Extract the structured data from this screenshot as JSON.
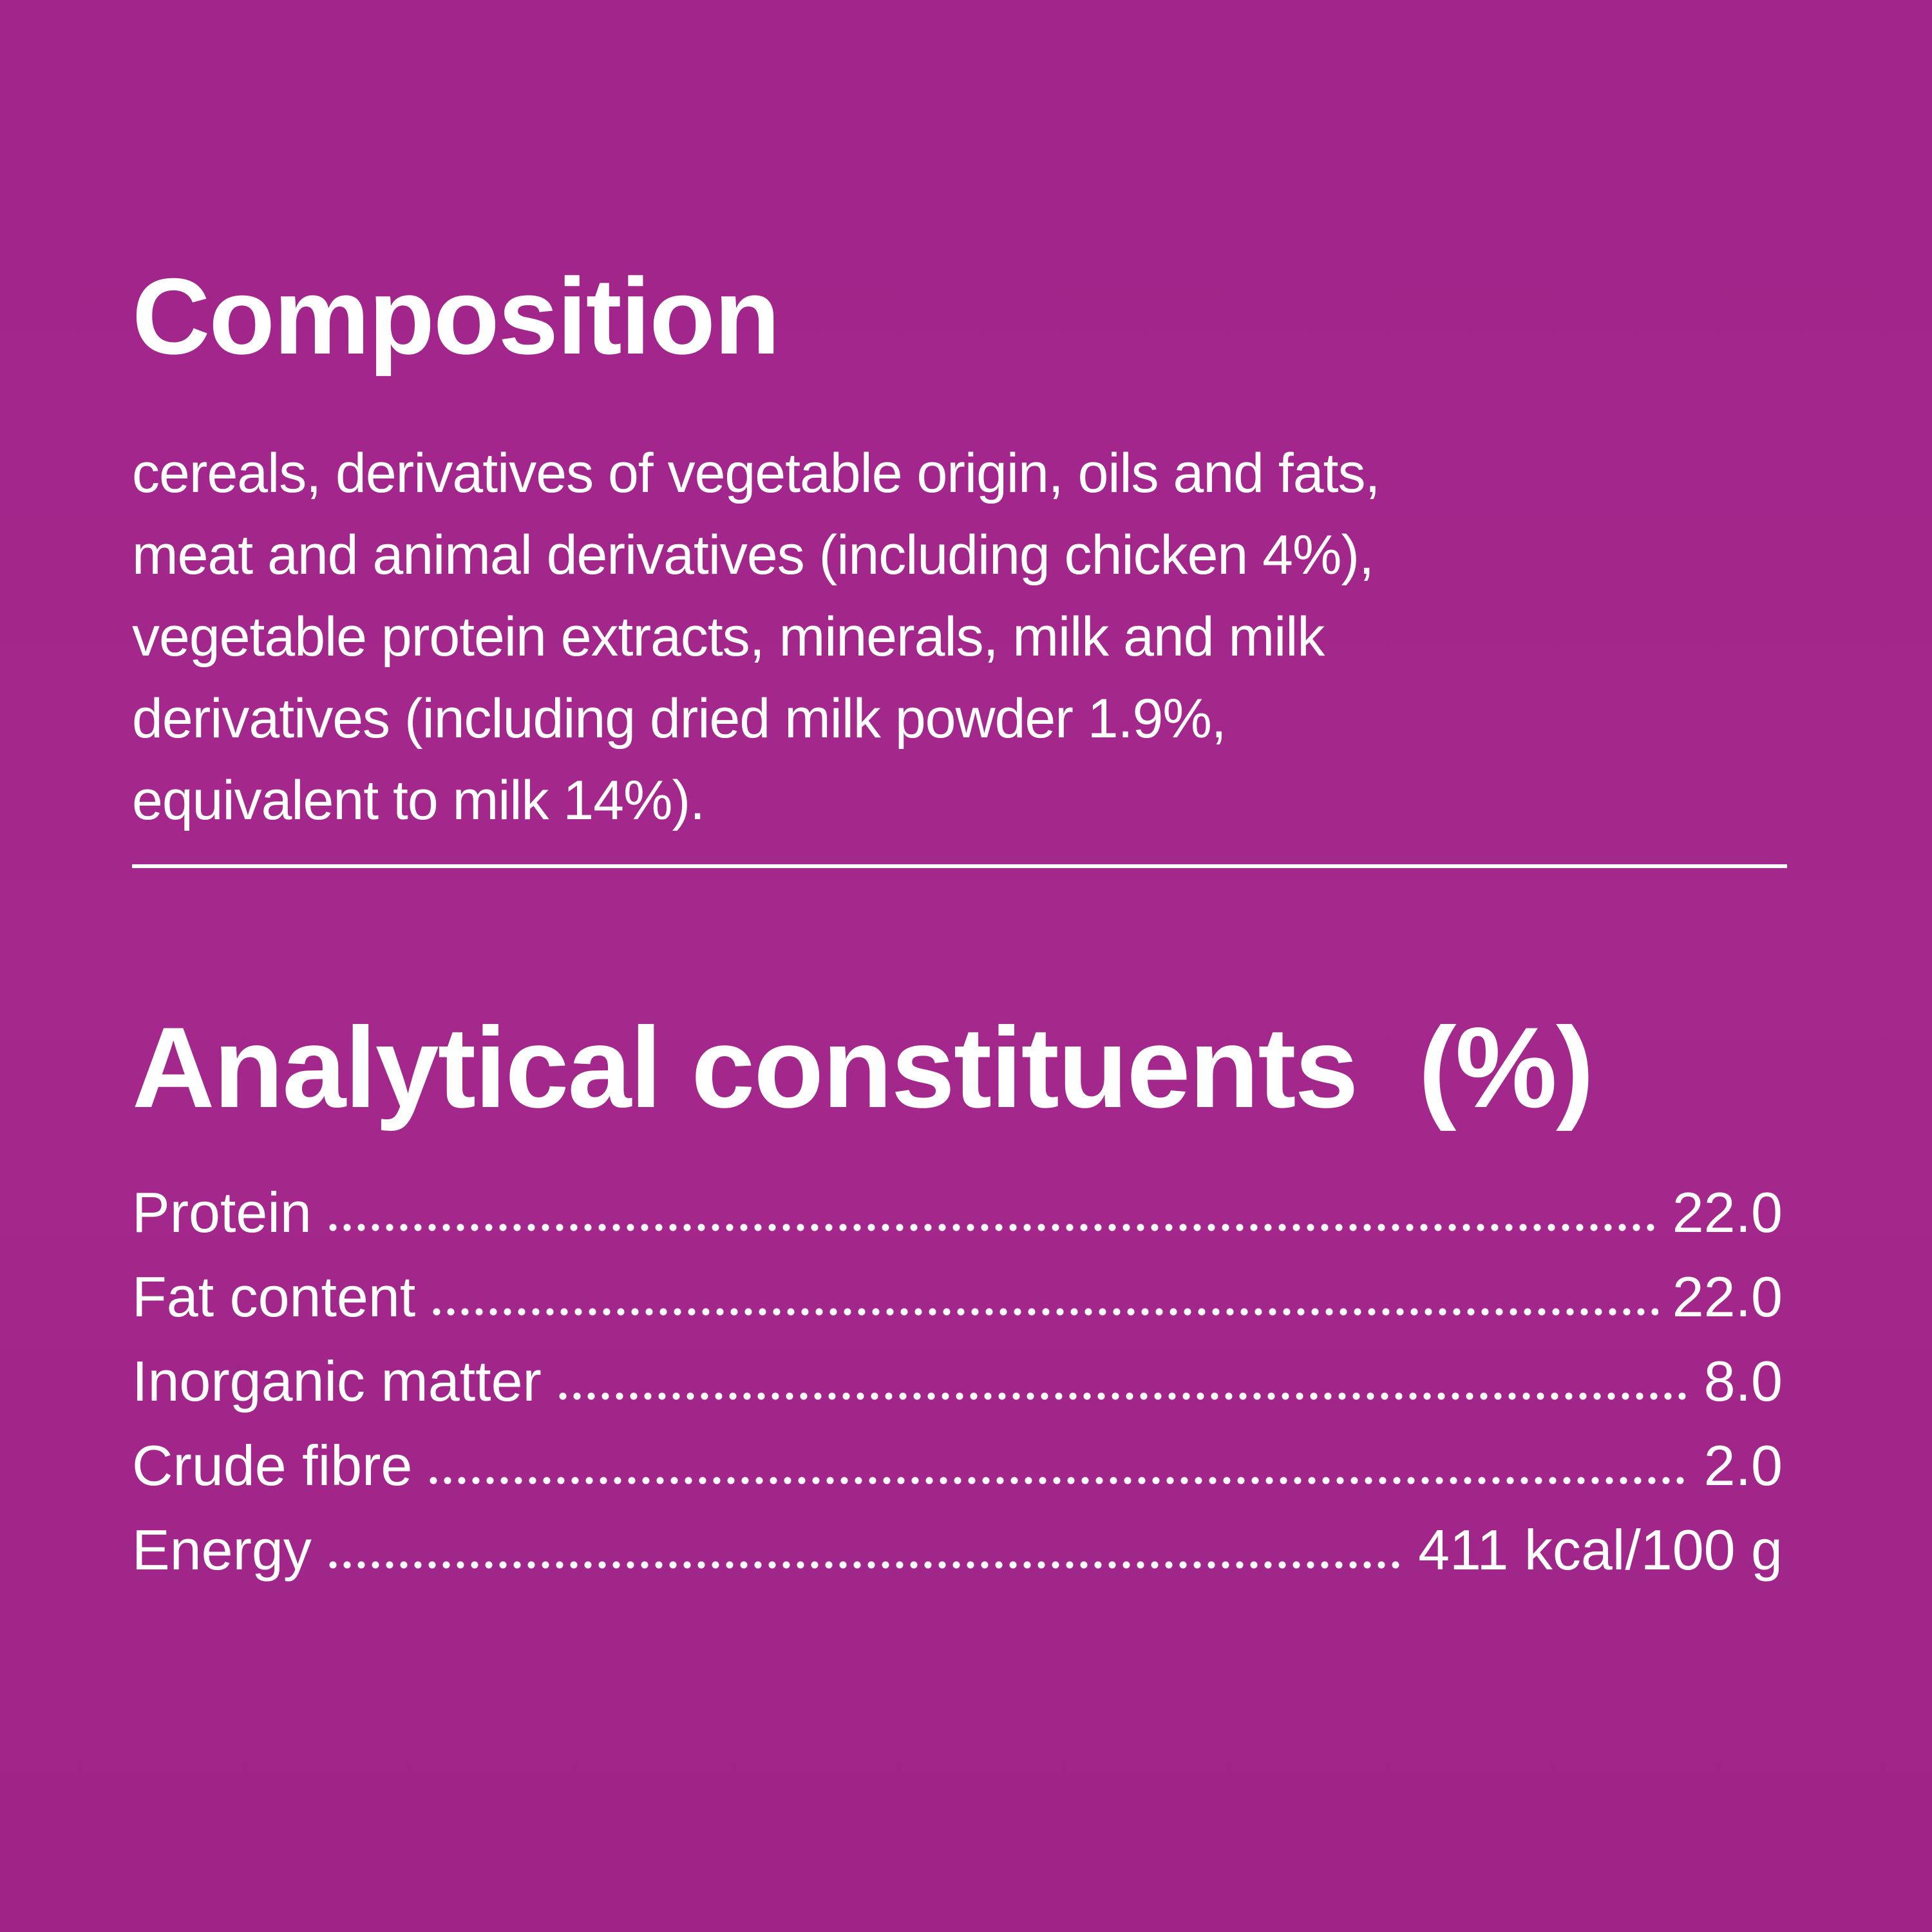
{
  "colors": {
    "background": "#a3268a",
    "text": "#ffffff"
  },
  "composition": {
    "title": "Composition",
    "lines": [
      "cereals, derivatives of vegetable origin, oils and fats,",
      "meat and animal derivatives (including chicken 4%),",
      "vegetable protein extracts, minerals, milk and milk",
      "derivatives (including dried milk powder 1.9%,",
      "equivalent to milk 14%)."
    ]
  },
  "analytical": {
    "title": "Analytical constituents  (%)",
    "rows": [
      {
        "label": "Protein",
        "value": "22.0"
      },
      {
        "label": "Fat content",
        "value": "22.0"
      },
      {
        "label": "Inorganic matter",
        "value": "8.0"
      },
      {
        "label": "Crude fibre",
        "value": "2.0"
      },
      {
        "label": "Energy",
        "value": "411 kcal/100 g"
      }
    ]
  }
}
